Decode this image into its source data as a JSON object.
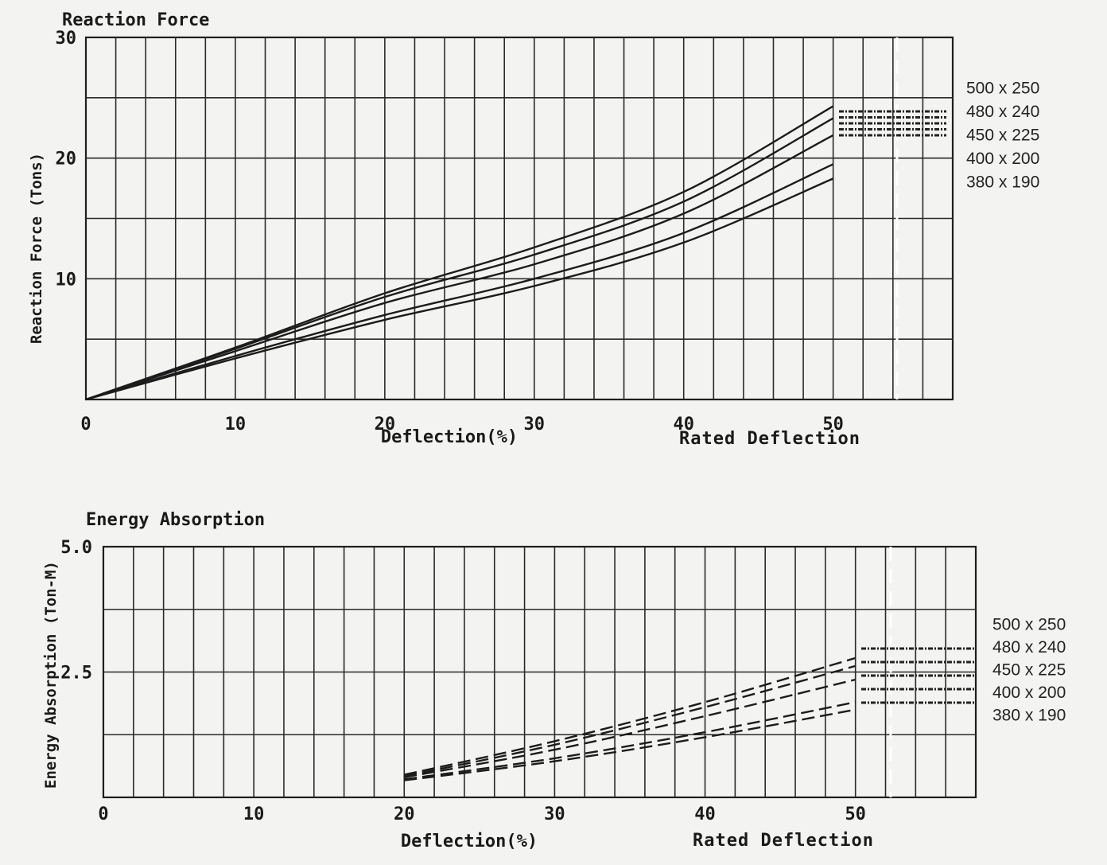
{
  "chart_data": [
    {
      "type": "line",
      "title": "Reaction Force",
      "xlabel": "Deflection(%)",
      "xlabel_note": "Rated Deflection",
      "ylabel": "Reaction Force (Tons)",
      "xlim": [
        0,
        58
      ],
      "ylim": [
        0,
        30
      ],
      "x_ticks": [
        "0",
        "10",
        "20",
        "30",
        "40",
        "50"
      ],
      "y_ticks": [
        "10",
        "20",
        "30"
      ],
      "grid": true,
      "legend_position": "right",
      "x": [
        0,
        10,
        20,
        30,
        40,
        50
      ],
      "series": [
        {
          "name": "500 x 250",
          "values": [
            0,
            4.3,
            8.8,
            12.6,
            17.2,
            24.3
          ]
        },
        {
          "name": "480 x 240",
          "values": [
            0,
            4.2,
            8.5,
            12.0,
            16.4,
            23.3
          ]
        },
        {
          "name": "450 x 225",
          "values": [
            0,
            4.0,
            8.0,
            11.2,
            15.4,
            21.9
          ]
        },
        {
          "name": "400 x 200",
          "values": [
            0,
            3.6,
            7.0,
            10.0,
            13.8,
            19.5
          ]
        },
        {
          "name": "380 x 190",
          "values": [
            0,
            3.4,
            6.6,
            9.4,
            13.0,
            18.3
          ]
        }
      ]
    },
    {
      "type": "line",
      "title": "Energy Absorption",
      "xlabel": "Deflection(%)",
      "xlabel_note": "Rated Deflection",
      "ylabel": "Energy Absorption (Ton-M)",
      "xlim": [
        0,
        58
      ],
      "ylim": [
        0,
        5.0
      ],
      "x_ticks": [
        "0",
        "10",
        "20",
        "30",
        "40",
        "50"
      ],
      "y_ticks": [
        "2.5",
        "5.0"
      ],
      "grid": true,
      "legend_position": "right",
      "x": [
        20,
        30,
        40,
        50
      ],
      "series": [
        {
          "name": "500 x 250",
          "values": [
            0.45,
            1.12,
            1.9,
            2.78
          ]
        },
        {
          "name": "480 x 240",
          "values": [
            0.42,
            1.05,
            1.8,
            2.62
          ]
        },
        {
          "name": "450 x 225",
          "values": [
            0.4,
            0.95,
            1.62,
            2.35
          ]
        },
        {
          "name": "400 x 200",
          "values": [
            0.36,
            0.78,
            1.3,
            1.9
          ]
        },
        {
          "name": "380 x 190",
          "values": [
            0.34,
            0.72,
            1.2,
            1.75
          ]
        }
      ]
    }
  ]
}
